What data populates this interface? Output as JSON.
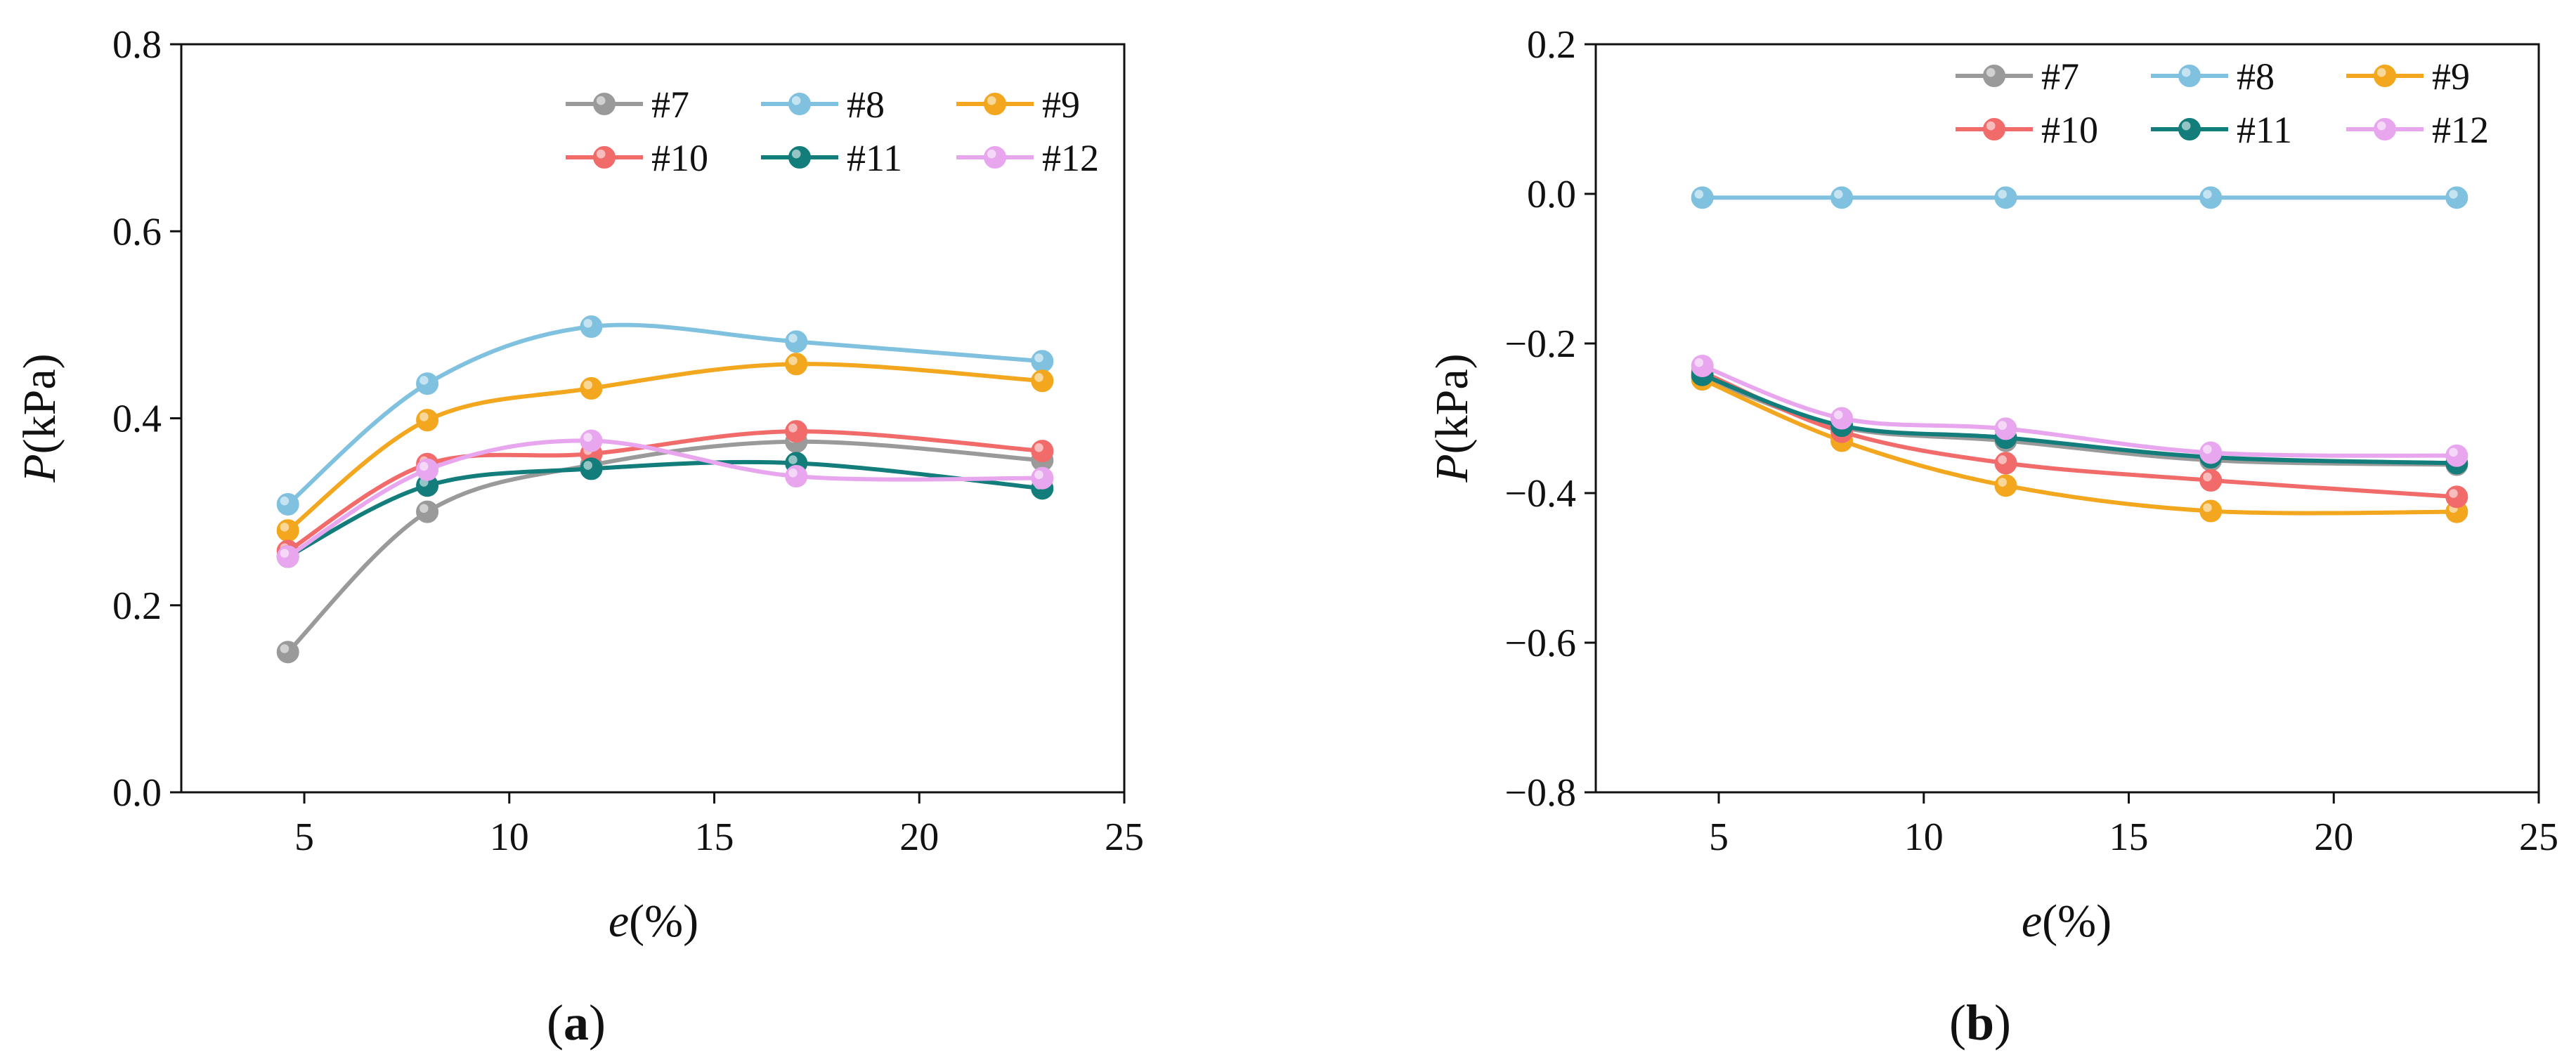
{
  "chart_data": [
    {
      "type": "line",
      "panel_label": "a",
      "xlabel_var": "e",
      "xlabel_unit": "(%)",
      "ylabel_var": "P",
      "ylabel_unit": "(kPa)",
      "xlim": [
        2,
        25
      ],
      "ylim": [
        0.0,
        0.8
      ],
      "x_ticks": [
        5,
        10,
        15,
        20,
        25
      ],
      "y_ticks": [
        "0.0",
        "0.2",
        "0.4",
        "0.6",
        "0.8"
      ],
      "x": [
        4.6,
        8,
        12,
        17,
        23
      ],
      "legend_position": "top-right",
      "series": [
        {
          "name": "#7",
          "color": "#9a9a9a",
          "values": [
            0.15,
            0.3,
            0.35,
            0.375,
            0.355
          ]
        },
        {
          "name": "#8",
          "color": "#7fc1de",
          "values": [
            0.308,
            0.437,
            0.498,
            0.482,
            0.461
          ]
        },
        {
          "name": "#9",
          "color": "#f2a71e",
          "values": [
            0.28,
            0.398,
            0.432,
            0.458,
            0.44
          ]
        },
        {
          "name": "#10",
          "color": "#f26b6b",
          "values": [
            0.258,
            0.351,
            0.362,
            0.386,
            0.365
          ]
        },
        {
          "name": "#11",
          "color": "#127d7a",
          "values": [
            0.252,
            0.328,
            0.346,
            0.352,
            0.325
          ]
        },
        {
          "name": "#12",
          "color": "#e8a6ef",
          "values": [
            0.252,
            0.345,
            0.376,
            0.338,
            0.336
          ]
        }
      ]
    },
    {
      "type": "line",
      "panel_label": "b",
      "xlabel_var": "e",
      "xlabel_unit": "(%)",
      "ylabel_var": "P",
      "ylabel_unit": "(kPa)",
      "xlim": [
        2,
        25
      ],
      "ylim": [
        -0.8,
        0.2
      ],
      "x_ticks": [
        5,
        10,
        15,
        20,
        25
      ],
      "y_ticks": [
        "−0.8",
        "−0.6",
        "−0.4",
        "−0.2",
        "0.0",
        "0.2"
      ],
      "x": [
        4.6,
        8,
        12,
        17,
        23
      ],
      "legend_position": "top-right",
      "series": [
        {
          "name": "#7",
          "color": "#9a9a9a",
          "values": [
            -0.245,
            -0.312,
            -0.33,
            -0.356,
            -0.362
          ]
        },
        {
          "name": "#8",
          "color": "#7fc1de",
          "values": [
            -0.005,
            -0.005,
            -0.005,
            -0.005,
            -0.005
          ]
        },
        {
          "name": "#9",
          "color": "#f2a71e",
          "values": [
            -0.248,
            -0.33,
            -0.39,
            -0.424,
            -0.425
          ]
        },
        {
          "name": "#10",
          "color": "#f26b6b",
          "values": [
            -0.238,
            -0.318,
            -0.36,
            -0.383,
            -0.405
          ]
        },
        {
          "name": "#11",
          "color": "#127d7a",
          "values": [
            -0.242,
            -0.31,
            -0.326,
            -0.352,
            -0.36
          ]
        },
        {
          "name": "#12",
          "color": "#e8a6ef",
          "values": [
            -0.23,
            -0.3,
            -0.314,
            -0.346,
            -0.35
          ]
        }
      ]
    }
  ]
}
